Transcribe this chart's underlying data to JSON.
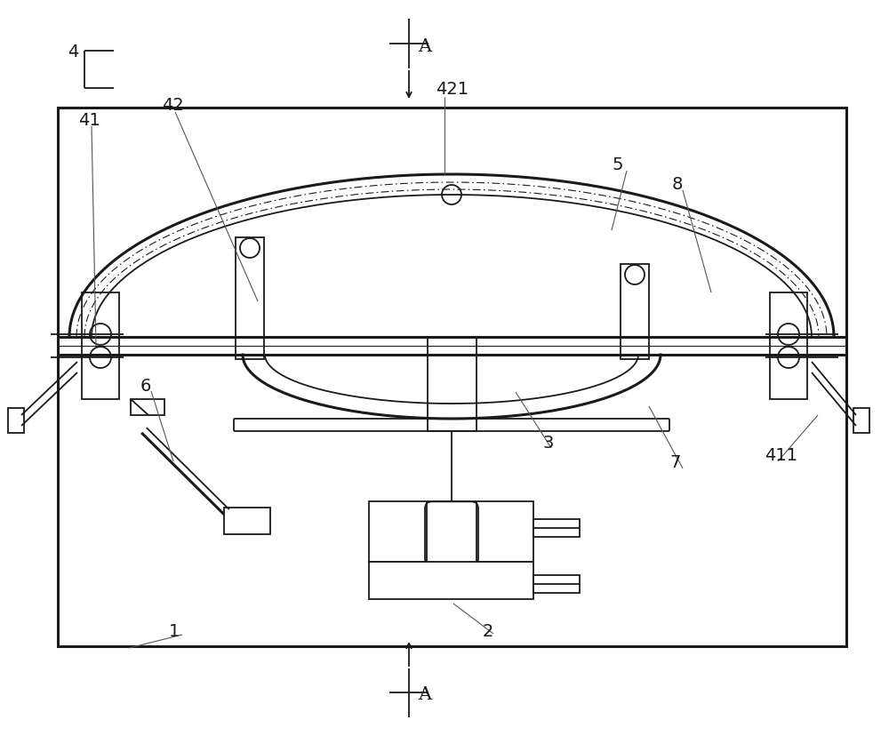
{
  "bg_color": "#ffffff",
  "line_color": "#1a1a1a",
  "fig_width": 10.0,
  "fig_height": 8.29,
  "dpi": 100
}
